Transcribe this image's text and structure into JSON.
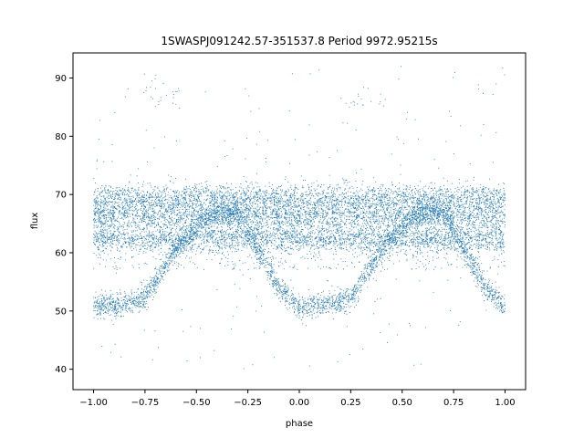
{
  "chart_data": {
    "type": "scatter",
    "title": "1SWASPJ091242.57-351537.8 Period 9972.95215s",
    "xlabel": "phase",
    "ylabel": "flux",
    "xlim": [
      -1.1,
      1.1
    ],
    "ylim": [
      36.5,
      94.3
    ],
    "x_ticks": [
      -1.0,
      -0.75,
      -0.5,
      -0.25,
      0.0,
      0.25,
      0.5,
      0.75,
      1.0
    ],
    "x_tick_labels": [
      "−1.00",
      "−0.75",
      "−0.50",
      "−0.25",
      "0.00",
      "0.25",
      "0.50",
      "0.75",
      "1.00"
    ],
    "y_ticks": [
      40,
      50,
      60,
      70,
      80,
      90
    ],
    "y_tick_labels": [
      "40",
      "50",
      "60",
      "70",
      "80",
      "90"
    ],
    "grid": false,
    "point_color": "#1f77b4",
    "bands": [
      {
        "name": "upper",
        "flux": 69.2,
        "spread": 1.3
      },
      {
        "name": "middle",
        "flux": 66.3,
        "spread": 1.3
      },
      {
        "name": "lower",
        "flux": 62.4,
        "spread": 1.1
      }
    ],
    "eclipse_curve": {
      "x": [
        -1.0,
        -0.9,
        -0.8,
        -0.75,
        -0.7,
        -0.6,
        -0.5,
        -0.45,
        -0.4,
        -0.3,
        -0.2,
        -0.1,
        0.0,
        0.1,
        0.2,
        0.25,
        0.3,
        0.4,
        0.5,
        0.55,
        0.6,
        0.7,
        0.8,
        0.9,
        1.0
      ],
      "y": [
        50.8,
        51.0,
        51.5,
        52.5,
        55.0,
        60.5,
        64.5,
        66.0,
        66.8,
        67.0,
        60.5,
        54.0,
        50.8,
        51.0,
        51.5,
        52.5,
        55.0,
        60.5,
        64.5,
        66.0,
        66.8,
        67.0,
        60.5,
        54.0,
        50.8
      ]
    },
    "outlier_clusters": [
      {
        "x_range": [
          -0.78,
          -0.58
        ],
        "flux_range": [
          85.0,
          88.5
        ]
      },
      {
        "x_range": [
          0.22,
          0.42
        ],
        "flux_range": [
          85.0,
          88.5
        ]
      }
    ]
  }
}
